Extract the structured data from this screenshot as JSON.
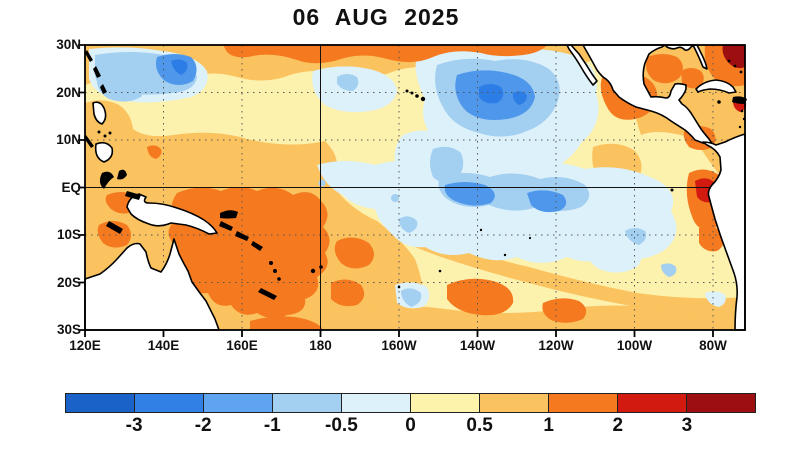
{
  "title": "06 AUG 2025",
  "map": {
    "lat_ticks": [
      "30N",
      "20N",
      "10N",
      "EQ",
      "10S",
      "20S",
      "30S"
    ],
    "lon_ticks": [
      "120E",
      "140E",
      "160E",
      "180",
      "160W",
      "140W",
      "120W",
      "100W",
      "80W"
    ]
  },
  "colorbar": {
    "labels": [
      "-3",
      "-2",
      "-1",
      "-0.5",
      "0",
      "0.5",
      "1",
      "2",
      "3"
    ],
    "colors": [
      "#1a62c8",
      "#3080e6",
      "#5ea4ee",
      "#a3cff1",
      "#dcf1fa",
      "#fdf3ab",
      "#fbc35f",
      "#f4791f",
      "#d21a10",
      "#9d0e10"
    ]
  },
  "chart_data": {
    "type": "heatmap",
    "title": "06 AUG 2025",
    "x_ticks": [
      "120E",
      "140E",
      "160E",
      "180",
      "160W",
      "140W",
      "120W",
      "100W",
      "80W"
    ],
    "y_ticks": [
      "30N",
      "20N",
      "10N",
      "EQ",
      "10S",
      "20S",
      "30S"
    ],
    "colorbar_levels": [
      -3,
      -2,
      -1,
      -0.5,
      0,
      0.5,
      1,
      2,
      3
    ],
    "colorbar_colors": [
      "#1a62c8",
      "#3080e6",
      "#5ea4ee",
      "#a3cff1",
      "#dcf1fa",
      "#fdf3ab",
      "#fbc35f",
      "#f4791f",
      "#d21a10",
      "#9d0e10"
    ],
    "grid_lat": [
      "25N",
      "15N",
      "5N",
      "5S",
      "15S",
      "25S"
    ],
    "grid_lon": [
      "130E",
      "150E",
      "170E",
      "170W",
      "150W",
      "130W",
      "110W",
      "90W"
    ],
    "values": [
      [
        -0.3,
        -1.5,
        0.3,
        0.3,
        -1.5,
        -0.3,
        1.0,
        1.5
      ],
      [
        0.8,
        0.8,
        0.3,
        0.3,
        0.3,
        -0.3,
        0.7,
        0.8
      ],
      [
        0.8,
        0.7,
        0.3,
        0.2,
        -0.3,
        -0.3,
        0.3,
        1.0
      ],
      [
        1.2,
        1.5,
        0.7,
        -0.3,
        -1.2,
        -0.7,
        -0.3,
        0.7
      ],
      [
        null,
        1.5,
        1.5,
        0.8,
        0.7,
        -0.3,
        0.3,
        0.5
      ],
      [
        null,
        1.2,
        0.8,
        1.0,
        1.5,
        0.8,
        0.5,
        0.3
      ]
    ],
    "features": [
      {
        "region": "Northwest Pacific ~25N 135-155E",
        "value": "-1 to -2 cool patch"
      },
      {
        "region": "North-central Pacific ~22N 150-135W",
        "value": "-1 to -2 cool pool"
      },
      {
        "region": "Equatorial central Pacific 0-8S, 180-110W",
        "value": "-0.5 to -1.5 cool band"
      },
      {
        "region": "Coral Sea / SW Pacific 0-25S, 145E-180",
        "value": "+1 to +2 warm pool"
      },
      {
        "region": "South-central Pacific ~20S 150-140W",
        "value": "+1 to +2 warm blob"
      },
      {
        "region": "Ecuador/Peru coast",
        "value": "+1 to +3 near coast"
      },
      {
        "region": "Gulf of Mexico / W Atlantic",
        "value": "+1 to >+3"
      },
      {
        "region": "North Pacific 28-30N band",
        "value": "+1 to +2"
      }
    ]
  }
}
